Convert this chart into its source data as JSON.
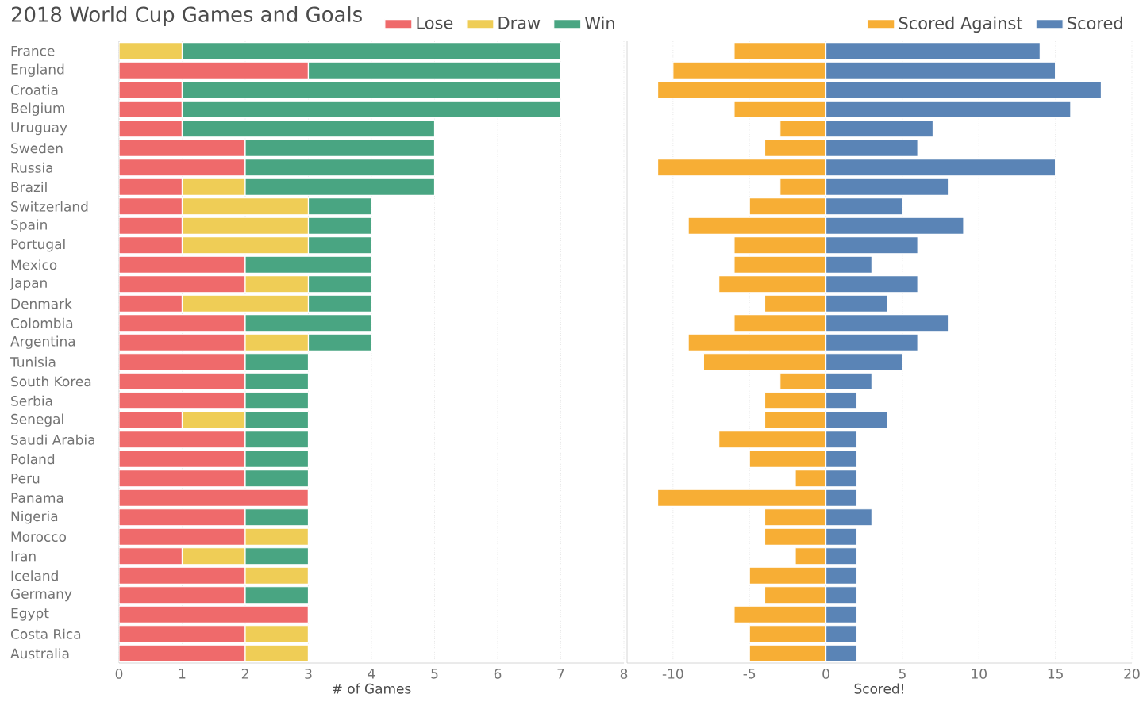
{
  "chart_data": [
    {
      "type": "bar",
      "orientation": "horizontal",
      "stacked": true,
      "title": "2018 World Cup Games and Goals",
      "xlabel": "# of Games",
      "legend": "top right",
      "grid": "x",
      "categories": [
        "France",
        "England",
        "Croatia",
        "Belgium",
        "Uruguay",
        "Sweden",
        "Russia",
        "Brazil",
        "Switzerland",
        "Spain",
        "Portugal",
        "Mexico",
        "Japan",
        "Denmark",
        "Colombia",
        "Argentina",
        "Tunisia",
        "South Korea",
        "Serbia",
        "Senegal",
        "Saudi Arabia",
        "Poland",
        "Peru",
        "Panama",
        "Nigeria",
        "Morocco",
        "Iran",
        "Iceland",
        "Germany",
        "Egypt",
        "Costa Rica",
        "Australia"
      ],
      "xlim": [
        0,
        8
      ],
      "xticks": [
        0,
        1,
        2,
        3,
        4,
        5,
        6,
        7,
        8
      ],
      "series": [
        {
          "name": "Lose",
          "color": "#ef6a6b",
          "values": [
            0,
            3,
            1,
            1,
            1,
            2,
            2,
            1,
            1,
            1,
            1,
            2,
            2,
            1,
            2,
            2,
            2,
            2,
            2,
            1,
            2,
            2,
            2,
            3,
            2,
            2,
            1,
            2,
            2,
            3,
            2,
            2
          ]
        },
        {
          "name": "Draw",
          "color": "#efcd56",
          "values": [
            1,
            0,
            0,
            0,
            0,
            0,
            0,
            1,
            2,
            2,
            2,
            0,
            1,
            2,
            0,
            1,
            0,
            0,
            0,
            1,
            0,
            0,
            0,
            0,
            0,
            1,
            1,
            1,
            0,
            0,
            1,
            1
          ]
        },
        {
          "name": "Win",
          "color": "#49a582",
          "values": [
            6,
            4,
            6,
            6,
            4,
            3,
            3,
            3,
            1,
            1,
            1,
            2,
            1,
            1,
            2,
            1,
            1,
            1,
            1,
            1,
            1,
            1,
            1,
            0,
            1,
            0,
            1,
            0,
            1,
            0,
            0,
            0
          ]
        }
      ]
    },
    {
      "type": "bar",
      "orientation": "horizontal",
      "stacked": true,
      "xlabel": "Scored!",
      "legend": "top right",
      "grid": "x",
      "tick_labels": "x",
      "categories": [
        null,
        null,
        null,
        null,
        null,
        null,
        null,
        null,
        null,
        null,
        null,
        null,
        null,
        null,
        null,
        null,
        null,
        null,
        null,
        null,
        null,
        null,
        null,
        null,
        null,
        null,
        null,
        null,
        null,
        null,
        null,
        null
      ],
      "xlim": [
        -13,
        20
      ],
      "xticks": [
        -10,
        -5,
        0,
        5,
        10,
        15,
        20
      ],
      "series": [
        {
          "name": "Scored Against",
          "color": "#f7ae35",
          "values": [
            -6,
            -10,
            -11,
            -6,
            -3,
            -4,
            -11,
            -3,
            -5,
            -9,
            -6,
            -6,
            -7,
            -4,
            -6,
            -9,
            -8,
            -3,
            -4,
            -4,
            -7,
            -5,
            -2,
            -11,
            -4,
            -4,
            -2,
            -5,
            -4,
            -6,
            -5,
            -5
          ]
        },
        {
          "name": "Scored",
          "color": "#5a84b6",
          "values": [
            14,
            15,
            18,
            16,
            7,
            6,
            15,
            8,
            5,
            9,
            6,
            3,
            6,
            4,
            8,
            6,
            5,
            3,
            2,
            4,
            2,
            2,
            2,
            2,
            3,
            2,
            2,
            2,
            2,
            2,
            2,
            2
          ]
        }
      ]
    }
  ]
}
